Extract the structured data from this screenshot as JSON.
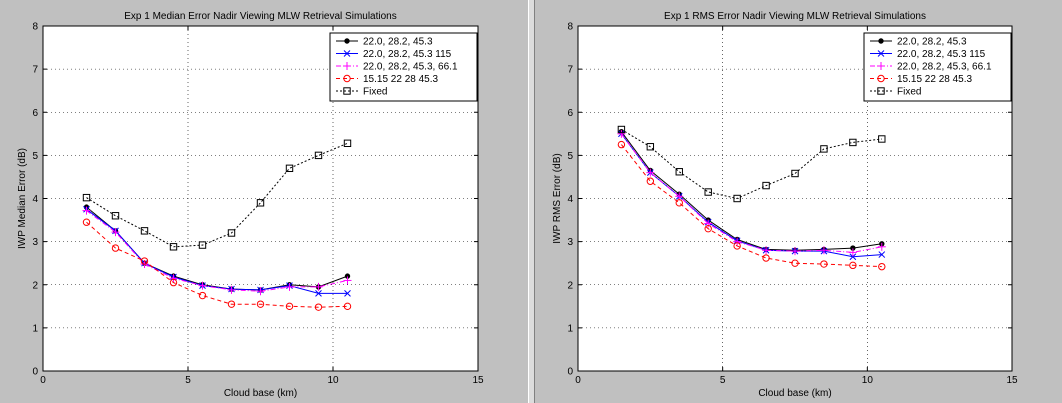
{
  "chart_data": [
    {
      "type": "line",
      "title": "Exp 1 Median Error Nadir Viewing MLW Retrieval Simulations",
      "xlabel": "Cloud base (km)",
      "ylabel": "IWP Median Error (dB)",
      "xlim": [
        0,
        15
      ],
      "ylim": [
        0,
        8
      ],
      "xticks": [
        0,
        5,
        10,
        15
      ],
      "yticks": [
        0,
        1,
        2,
        3,
        4,
        5,
        6,
        7,
        8
      ],
      "grid": true,
      "legend_position": "top-right",
      "x": [
        1.5,
        2.5,
        3.5,
        4.5,
        5.5,
        6.5,
        7.5,
        8.5,
        9.5,
        10.5
      ],
      "series": [
        {
          "name": "22.0, 28.2, 45.3",
          "color": "#000000",
          "marker": "dot",
          "dash": "solid",
          "values": [
            3.8,
            3.25,
            2.5,
            2.2,
            2.0,
            1.9,
            1.88,
            2.0,
            1.95,
            2.2
          ]
        },
        {
          "name": "22.0, 28.2, 45.3 115",
          "color": "#0000ff",
          "marker": "x",
          "dash": "solid",
          "values": [
            3.75,
            3.25,
            2.5,
            2.18,
            1.98,
            1.9,
            1.88,
            1.98,
            1.8,
            1.8
          ]
        },
        {
          "name": "22.0, 28.2, 45.3, 66.1",
          "color": "#ff00ff",
          "marker": "plus",
          "dash": "dashdot",
          "values": [
            3.72,
            3.22,
            2.48,
            2.15,
            1.98,
            1.88,
            1.85,
            1.95,
            1.95,
            2.1
          ]
        },
        {
          "name": "15.15 22 28 45.3",
          "color": "#ff0000",
          "marker": "circle",
          "dash": "dashed",
          "values": [
            3.45,
            2.85,
            2.55,
            2.05,
            1.75,
            1.55,
            1.55,
            1.5,
            1.48,
            1.5
          ]
        },
        {
          "name": "Fixed",
          "color": "#000000",
          "marker": "square",
          "dash": "dotted",
          "values": [
            4.02,
            3.6,
            3.25,
            2.88,
            2.92,
            3.2,
            3.9,
            4.7,
            5.0,
            5.28
          ]
        }
      ]
    },
    {
      "type": "line",
      "title": "Exp 1 RMS Error Nadir Viewing MLW Retrieval Simulations",
      "xlabel": "Cloud base (km)",
      "ylabel": "IWP RMS Error (dB)",
      "xlim": [
        0,
        15
      ],
      "ylim": [
        0,
        8
      ],
      "xticks": [
        0,
        5,
        10,
        15
      ],
      "yticks": [
        0,
        1,
        2,
        3,
        4,
        5,
        6,
        7,
        8
      ],
      "grid": true,
      "legend_position": "top-right",
      "x": [
        1.5,
        2.5,
        3.5,
        4.5,
        5.5,
        6.5,
        7.5,
        8.5,
        9.5,
        10.5
      ],
      "series": [
        {
          "name": "22.0, 28.2, 45.3",
          "color": "#000000",
          "marker": "dot",
          "dash": "solid",
          "values": [
            5.55,
            4.65,
            4.1,
            3.5,
            3.05,
            2.82,
            2.8,
            2.82,
            2.85,
            2.95
          ]
        },
        {
          "name": "22.0, 28.2, 45.3 115",
          "color": "#0000ff",
          "marker": "x",
          "dash": "solid",
          "values": [
            5.5,
            4.6,
            4.05,
            3.45,
            3.02,
            2.8,
            2.78,
            2.78,
            2.65,
            2.7
          ]
        },
        {
          "name": "22.0, 28.2, 45.3, 66.1",
          "color": "#ff00ff",
          "marker": "plus",
          "dash": "dashdot",
          "values": [
            5.5,
            4.6,
            4.05,
            3.42,
            3.0,
            2.8,
            2.78,
            2.8,
            2.75,
            2.88
          ]
        },
        {
          "name": "15.15 22 28 45.3",
          "color": "#ff0000",
          "marker": "circle",
          "dash": "dashed",
          "values": [
            5.25,
            4.4,
            3.9,
            3.3,
            2.9,
            2.62,
            2.5,
            2.48,
            2.45,
            2.42
          ]
        },
        {
          "name": "Fixed",
          "color": "#000000",
          "marker": "square",
          "dash": "dotted",
          "values": [
            5.6,
            5.2,
            4.62,
            4.15,
            4.0,
            4.3,
            4.58,
            5.15,
            5.3,
            5.38
          ]
        }
      ]
    }
  ]
}
